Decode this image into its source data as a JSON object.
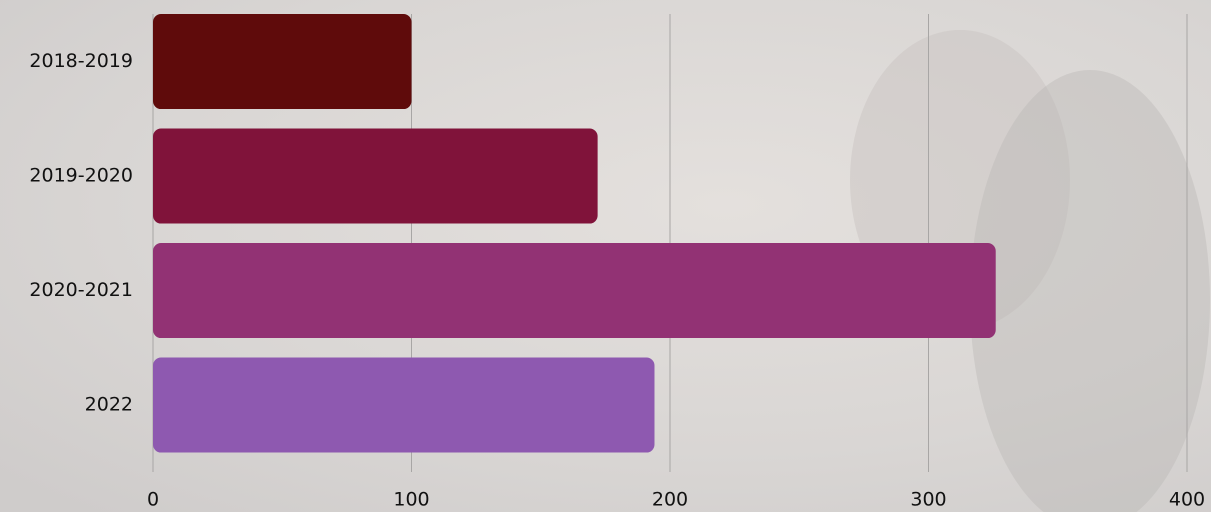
{
  "chart_data": {
    "type": "bar",
    "orientation": "horizontal",
    "categories": [
      "2018-2019",
      "2019-2020",
      "2020-2021",
      "2022"
    ],
    "values": [
      100,
      172,
      326,
      194
    ],
    "colors": [
      "#5f0b0b",
      "#80133a",
      "#923274",
      "#8e59b0"
    ],
    "xlim": [
      0,
      400
    ],
    "xticks": [
      0,
      100,
      200,
      300,
      400
    ],
    "grid": true
  }
}
